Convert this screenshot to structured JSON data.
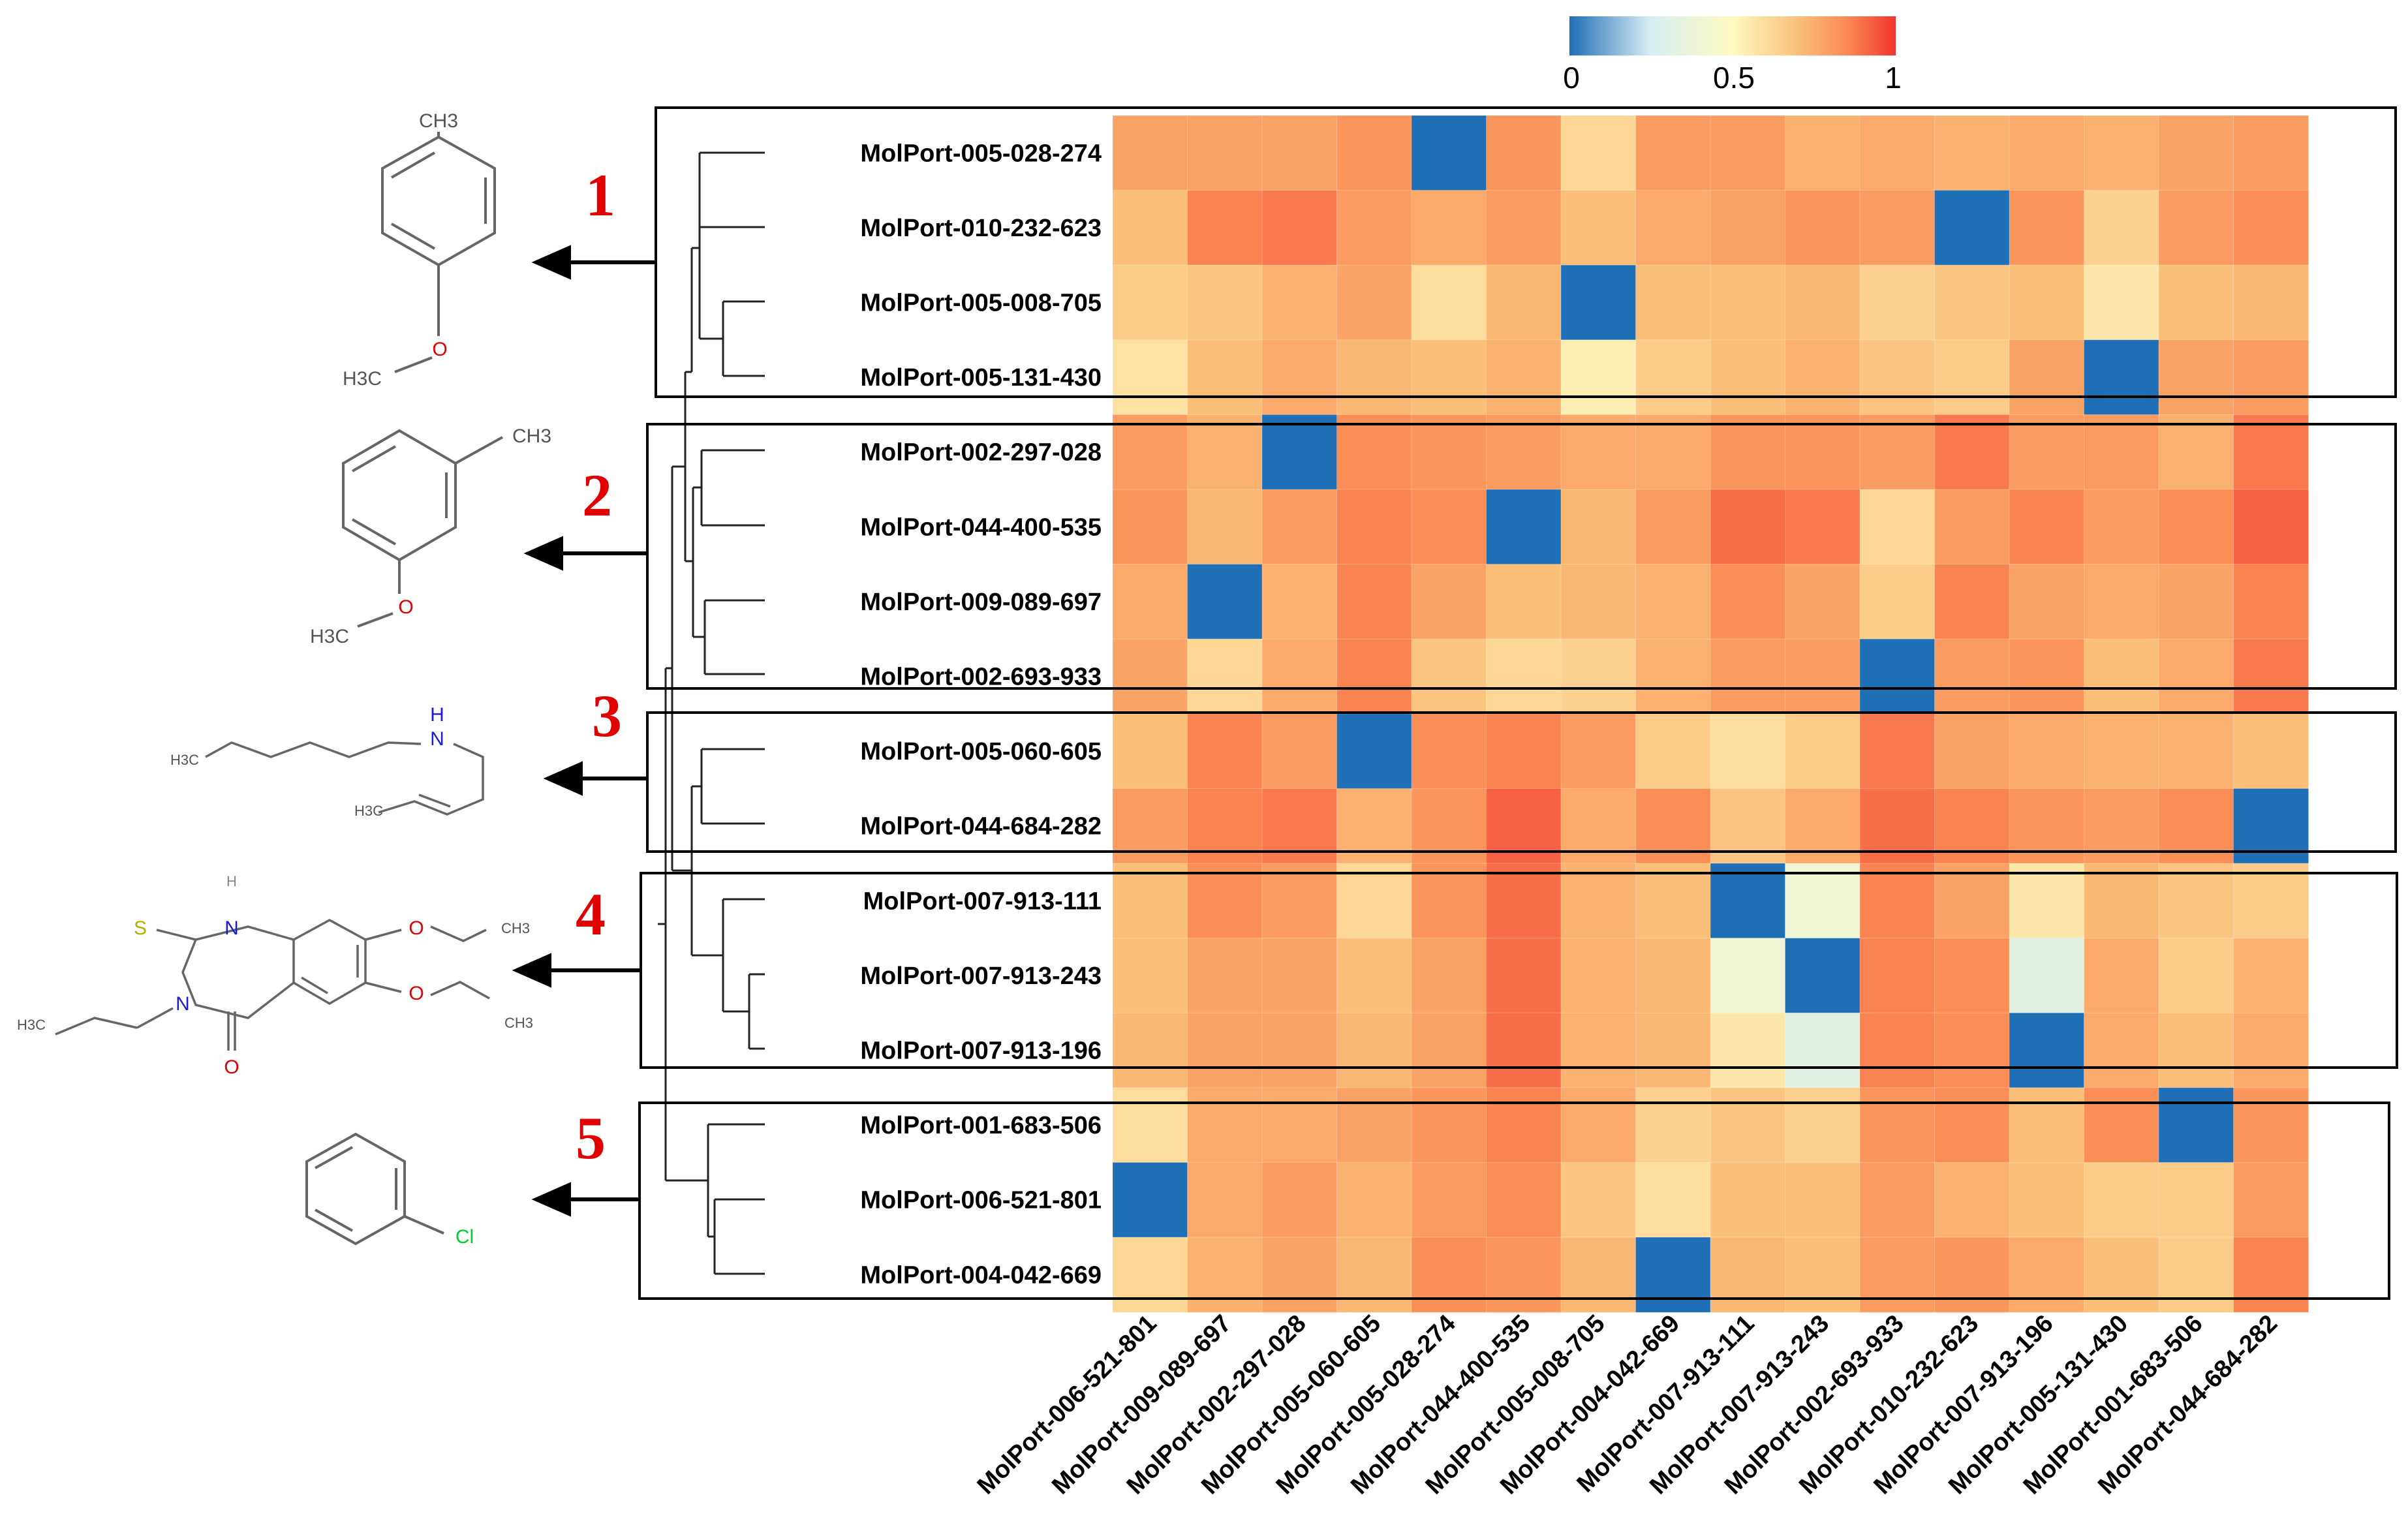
{
  "chart_data": {
    "type": "heatmap",
    "title": "",
    "row_labels": [
      "MolPort-005-028-274",
      "MolPort-010-232-623",
      "MolPort-005-008-705",
      "MolPort-005-131-430",
      "MolPort-002-297-028",
      "MolPort-044-400-535",
      "MolPort-009-089-697",
      "MolPort-002-693-933",
      "MolPort-005-060-605",
      "MolPort-044-684-282",
      "MolPort-007-913-111",
      "MolPort-007-913-243",
      "MolPort-007-913-196",
      "MolPort-001-683-506",
      "MolPort-006-521-801",
      "MolPort-004-042-669"
    ],
    "col_labels": [
      "MolPort-006-521-801",
      "MolPort-009-089-697",
      "MolPort-002-297-028",
      "MolPort-005-060-605",
      "MolPort-005-028-274",
      "MolPort-044-400-535",
      "MolPort-005-008-705",
      "MolPort-004-042-669",
      "MolPort-007-913-111",
      "MolPort-007-913-243",
      "MolPort-002-693-933",
      "MolPort-010-232-623",
      "MolPort-007-913-196",
      "MolPort-005-131-430",
      "MolPort-001-683-506",
      "MolPort-044-684-282"
    ],
    "values": [
      [
        0.78,
        0.78,
        0.78,
        0.82,
        0.0,
        0.82,
        0.62,
        0.8,
        0.8,
        0.74,
        0.76,
        0.74,
        0.76,
        0.74,
        0.78,
        0.8
      ],
      [
        0.7,
        0.86,
        0.88,
        0.8,
        0.76,
        0.8,
        0.7,
        0.76,
        0.78,
        0.82,
        0.8,
        0.0,
        0.82,
        0.64,
        0.8,
        0.84
      ],
      [
        0.66,
        0.68,
        0.74,
        0.78,
        0.6,
        0.72,
        0.0,
        0.7,
        0.7,
        0.72,
        0.64,
        0.68,
        0.7,
        0.56,
        0.7,
        0.72
      ],
      [
        0.58,
        0.7,
        0.76,
        0.72,
        0.7,
        0.74,
        0.54,
        0.66,
        0.7,
        0.74,
        0.68,
        0.66,
        0.78,
        0.0,
        0.78,
        0.8
      ],
      [
        0.8,
        0.74,
        0.0,
        0.84,
        0.82,
        0.8,
        0.76,
        0.76,
        0.82,
        0.82,
        0.8,
        0.88,
        0.8,
        0.8,
        0.74,
        0.88
      ],
      [
        0.82,
        0.72,
        0.8,
        0.86,
        0.84,
        0.0,
        0.72,
        0.8,
        0.9,
        0.88,
        0.62,
        0.8,
        0.86,
        0.8,
        0.84,
        0.92
      ],
      [
        0.76,
        0.0,
        0.74,
        0.86,
        0.78,
        0.7,
        0.72,
        0.74,
        0.84,
        0.78,
        0.66,
        0.86,
        0.78,
        0.76,
        0.78,
        0.86
      ],
      [
        0.78,
        0.62,
        0.76,
        0.86,
        0.68,
        0.62,
        0.64,
        0.74,
        0.8,
        0.8,
        0.0,
        0.8,
        0.82,
        0.7,
        0.76,
        0.88
      ],
      [
        0.7,
        0.86,
        0.8,
        0.0,
        0.84,
        0.86,
        0.8,
        0.66,
        0.6,
        0.66,
        0.88,
        0.78,
        0.76,
        0.74,
        0.74,
        0.7
      ],
      [
        0.8,
        0.86,
        0.88,
        0.74,
        0.82,
        0.92,
        0.76,
        0.84,
        0.68,
        0.76,
        0.9,
        0.86,
        0.82,
        0.8,
        0.84,
        0.0
      ],
      [
        0.7,
        0.84,
        0.8,
        0.62,
        0.82,
        0.9,
        0.74,
        0.7,
        0.0,
        0.4,
        0.86,
        0.78,
        0.56,
        0.72,
        0.68,
        0.66
      ],
      [
        0.7,
        0.78,
        0.78,
        0.7,
        0.78,
        0.9,
        0.74,
        0.72,
        0.4,
        0.0,
        0.86,
        0.84,
        0.32,
        0.76,
        0.66,
        0.74
      ],
      [
        0.72,
        0.78,
        0.78,
        0.72,
        0.78,
        0.9,
        0.74,
        0.72,
        0.56,
        0.32,
        0.86,
        0.84,
        0.0,
        0.76,
        0.7,
        0.76
      ],
      [
        0.6,
        0.76,
        0.76,
        0.78,
        0.82,
        0.86,
        0.76,
        0.64,
        0.68,
        0.64,
        0.82,
        0.84,
        0.7,
        0.84,
        0.0,
        0.82
      ],
      [
        0.0,
        0.76,
        0.8,
        0.74,
        0.8,
        0.84,
        0.68,
        0.6,
        0.7,
        0.7,
        0.8,
        0.74,
        0.7,
        0.66,
        0.66,
        0.8
      ],
      [
        0.62,
        0.74,
        0.78,
        0.72,
        0.84,
        0.82,
        0.72,
        0.0,
        0.72,
        0.7,
        0.8,
        0.82,
        0.76,
        0.7,
        0.66,
        0.86
      ]
    ],
    "colorbar": {
      "range": [
        0,
        1
      ],
      "ticks": [
        "0",
        "0.5",
        "1"
      ],
      "colors": [
        "#1f6fb6",
        "#d9eef4",
        "#fefac0",
        "#fbbf7a",
        "#fa8a55",
        "#f2352e"
      ]
    },
    "groups": [
      {
        "label": "1",
        "rows": [
          0,
          3
        ]
      },
      {
        "label": "2",
        "rows": [
          4,
          7
        ]
      },
      {
        "label": "3",
        "rows": [
          8,
          9
        ]
      },
      {
        "label": "4",
        "rows": [
          10,
          12
        ]
      },
      {
        "label": "5",
        "rows": [
          13,
          15
        ]
      }
    ],
    "structure_atom_labels": {
      "s1": {
        "ch3": "CH3",
        "o": "O",
        "h3c": "H3C"
      },
      "s2": {
        "ch3": "CH3",
        "o": "O",
        "h3c": "H3C"
      },
      "s3": {
        "n": "N",
        "h": "H",
        "h3c_a": "H3C",
        "h3c_b": "H3C"
      },
      "s4": {
        "h": "H",
        "n1": "N",
        "s": "S",
        "n2": "N",
        "o_ketone": "O",
        "o1": "O",
        "o2": "O",
        "ch3_a": "CH3",
        "ch3_b": "CH3",
        "h3c": "H3C"
      },
      "s5": {
        "cl": "Cl"
      }
    }
  }
}
